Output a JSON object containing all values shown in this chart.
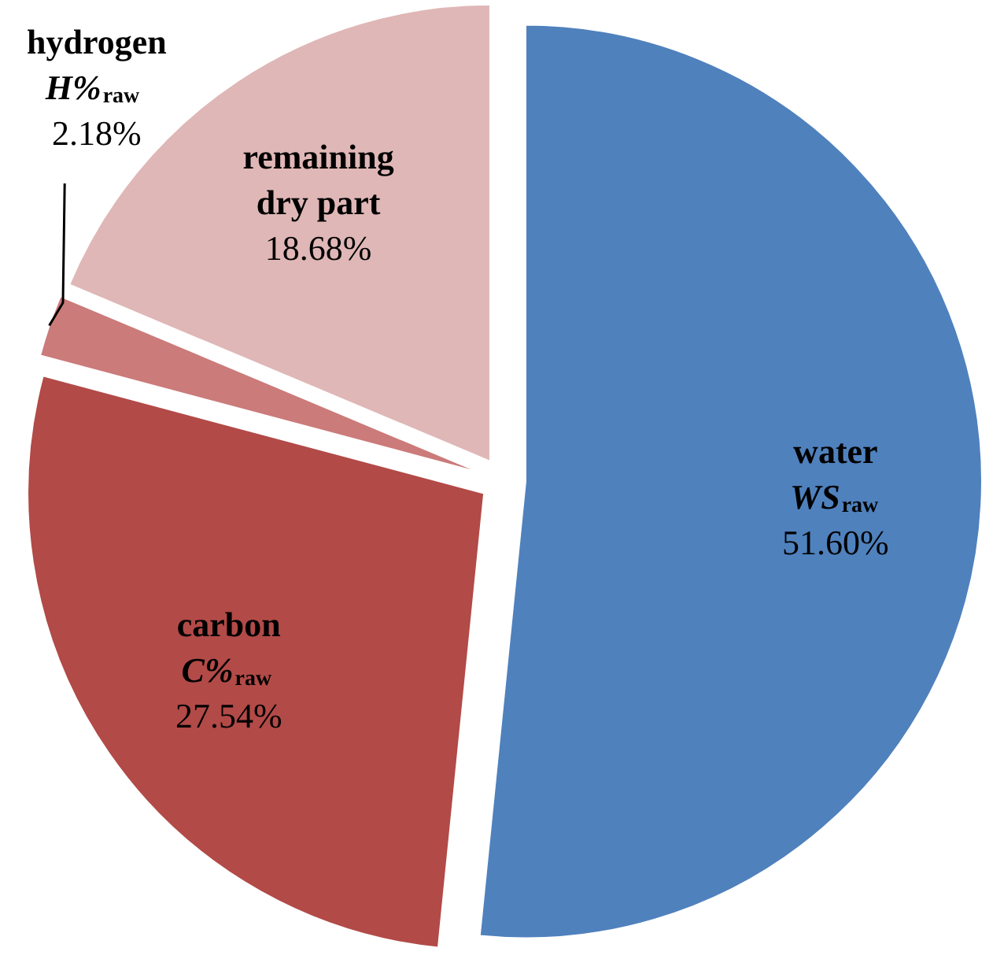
{
  "chart_data": {
    "type": "pie",
    "categories": [
      "water\nWS$_{raw}$",
      "carbon\nC%$_{raw}$",
      "hydrogen\nH%$_{raw}$",
      "remaining\ndry part"
    ],
    "values": [
      51.6,
      27.54,
      2.18,
      18.68
    ],
    "colors": [
      "#4f81bd",
      "#b24a47",
      "#cb7b7a",
      "#dfb7b6"
    ],
    "value_labels": [
      "51.60%",
      "27.54%",
      "2.18%",
      "18.68%"
    ]
  }
}
